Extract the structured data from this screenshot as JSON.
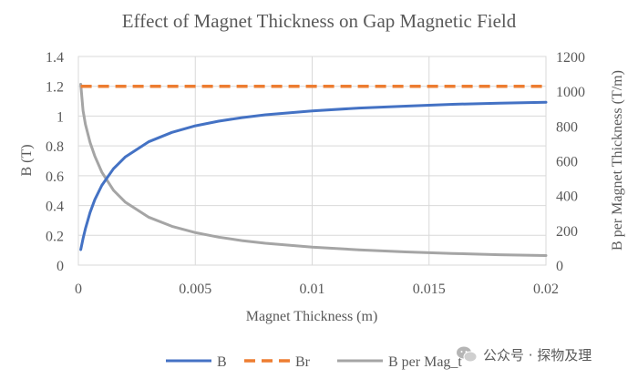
{
  "chart_data": {
    "type": "line",
    "title": "Effect of Magnet Thickness on Gap Magnetic Field",
    "xlabel": "Magnet Thickness (m)",
    "ylabel": "B (T)",
    "y2label": "B per Magnet Thickness (T/m)",
    "xlim": [
      0,
      0.02
    ],
    "ylim": [
      0,
      1.4
    ],
    "y2lim": [
      0,
      1200
    ],
    "x_ticks": [
      "0",
      "0.005",
      "0.01",
      "0.015",
      "0.02"
    ],
    "y_ticks": [
      "0",
      "0.2",
      "0.4",
      "0.6",
      "0.8",
      "1",
      "1.2",
      "1.4"
    ],
    "y2_ticks": [
      "0",
      "200",
      "400",
      "600",
      "800",
      "1000",
      "1200"
    ],
    "grid": true,
    "legend_position": "bottom",
    "x": [
      0.0001,
      0.0002,
      0.0003,
      0.0005,
      0.0007,
      0.001,
      0.0015,
      0.002,
      0.003,
      0.004,
      0.005,
      0.006,
      0.007,
      0.008,
      0.01,
      0.012,
      0.014,
      0.016,
      0.018,
      0.02
    ],
    "series": [
      {
        "name": "B",
        "axis": "left",
        "color": "#4472c4",
        "dash": "solid",
        "values": [
          0.104,
          0.178,
          0.244,
          0.353,
          0.439,
          0.535,
          0.647,
          0.725,
          0.827,
          0.891,
          0.935,
          0.966,
          0.99,
          1.009,
          1.035,
          1.054,
          1.067,
          1.079,
          1.087,
          1.093
        ]
      },
      {
        "name": "Br",
        "axis": "left",
        "color": "#ed7d31",
        "dash": "dashed",
        "values": [
          1.2,
          1.2,
          1.2,
          1.2,
          1.2,
          1.2,
          1.2,
          1.2,
          1.2,
          1.2,
          1.2,
          1.2,
          1.2,
          1.2,
          1.2,
          1.2,
          1.2,
          1.2,
          1.2,
          1.2
        ]
      },
      {
        "name": "B per Mag_t",
        "axis": "right",
        "color": "#a5a5a5",
        "dash": "solid",
        "values": [
          1040,
          890,
          810,
          706,
          627,
          535,
          431,
          363,
          276,
          223,
          187,
          161,
          141,
          126,
          104,
          88,
          76,
          67,
          60,
          55
        ]
      }
    ]
  },
  "watermark": {
    "icon": "wechat-logo-icon",
    "text": "公众号 · 探物及理"
  }
}
